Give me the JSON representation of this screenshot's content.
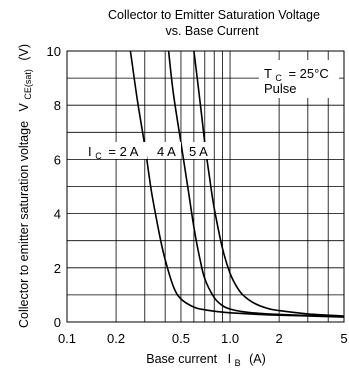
{
  "chart_data": {
    "type": "line",
    "title": "Collector to Emitter Saturation Voltage",
    "subtitle": "vs. Base Current",
    "xlabel": "Base current",
    "xlabel_symbol": "I",
    "xlabel_sub": "B",
    "xlabel_unit": "(A)",
    "ylabel": "Collector to emitter saturation voltage",
    "ylabel_symbol": "V",
    "ylabel_sub": "CE(sat)",
    "ylabel_unit": "(V)",
    "x_scale": "log",
    "xlim": [
      0.1,
      5
    ],
    "ylim": [
      0,
      10
    ],
    "x_ticks": [
      0.1,
      0.2,
      0.5,
      1.0,
      2,
      5
    ],
    "x_tick_labels": [
      "0.1",
      "0.2",
      "0.5",
      "1.0",
      "2",
      "5"
    ],
    "x_minor_grid": [
      0.3,
      0.4,
      0.6,
      0.7,
      0.8,
      0.9,
      3,
      4
    ],
    "y_ticks": [
      0,
      2,
      4,
      6,
      8,
      10
    ],
    "y_tick_labels": [
      "0",
      "2",
      "4",
      "6",
      "8",
      "10"
    ],
    "y_minor_grid": [
      1,
      3,
      5,
      7,
      9
    ],
    "grid": true,
    "series": [
      {
        "name": "2 A",
        "x": [
          0.245,
          0.27,
          0.3,
          0.33,
          0.37,
          0.4,
          0.45,
          0.5,
          0.6,
          0.7,
          0.85,
          1.0,
          1.5,
          2,
          3,
          5
        ],
        "y": [
          10.0,
          8.2,
          6.5,
          4.8,
          3.2,
          2.3,
          1.3,
          0.85,
          0.55,
          0.45,
          0.38,
          0.34,
          0.28,
          0.25,
          0.22,
          0.18
        ]
      },
      {
        "name": "4 A",
        "x": [
          0.42,
          0.45,
          0.5,
          0.55,
          0.6,
          0.65,
          0.7,
          0.8,
          0.9,
          1.0,
          1.2,
          1.5,
          2,
          3,
          5
        ],
        "y": [
          10.0,
          8.4,
          6.6,
          5.0,
          3.5,
          2.4,
          1.6,
          0.9,
          0.6,
          0.48,
          0.38,
          0.32,
          0.28,
          0.24,
          0.2
        ]
      },
      {
        "name": "5 A",
        "x": [
          0.6,
          0.65,
          0.7,
          0.75,
          0.8,
          0.9,
          1.0,
          1.1,
          1.2,
          1.4,
          1.7,
          2,
          3,
          5
        ],
        "y": [
          10.0,
          8.3,
          6.6,
          5.3,
          4.2,
          2.7,
          1.8,
          1.3,
          1.0,
          0.7,
          0.5,
          0.42,
          0.3,
          0.22
        ]
      }
    ],
    "annotations": {
      "ic_symbol": "I",
      "ic_sub": "C",
      "ic_first": "= 2 A",
      "ic_second": "4 A",
      "ic_third": "5 A",
      "tc_symbol": "T",
      "tc_sub": "C",
      "tc_value": "= 25°C",
      "pulse": "Pulse"
    }
  }
}
